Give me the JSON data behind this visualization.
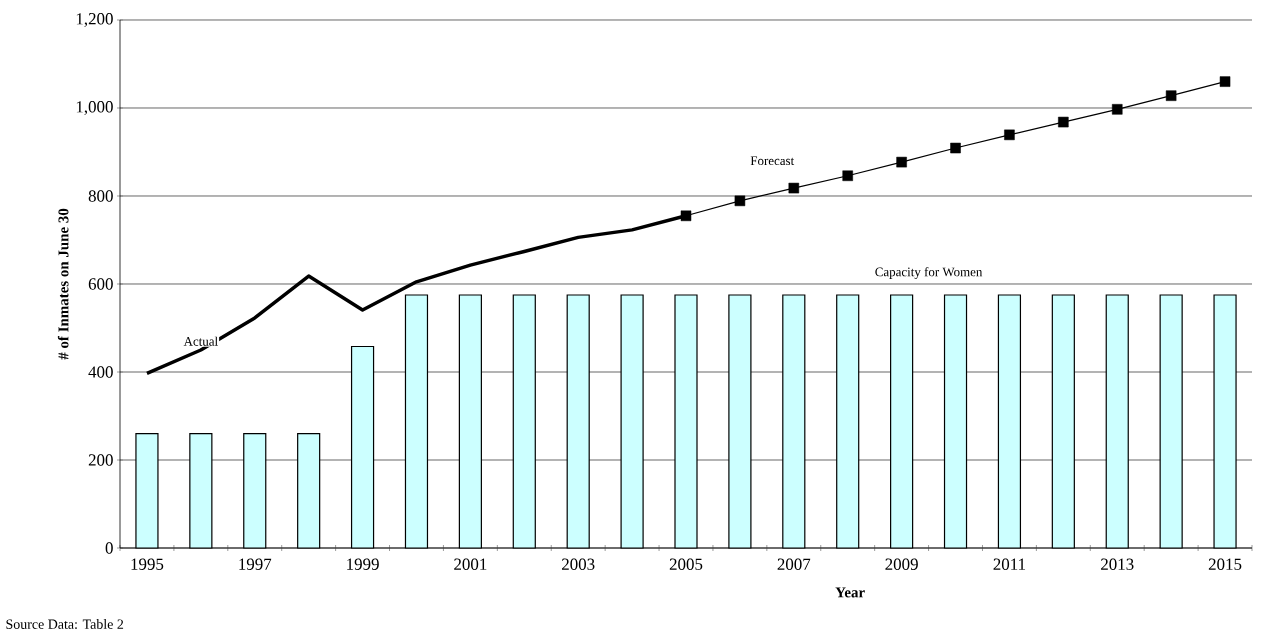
{
  "chart_data": {
    "type": "bar",
    "xlabel": "Year",
    "ylabel": "# of Inmates on June 30",
    "annotations": [
      "Source Data: Table 2"
    ],
    "categories": [
      "1995",
      null,
      "1997",
      null,
      "1999",
      null,
      "2001",
      null,
      "2003",
      null,
      "2005",
      null,
      "2007",
      null,
      "2009",
      null,
      "2011",
      null,
      "2013",
      null,
      "2015"
    ],
    "series": [
      {
        "name": "Capacity for Women",
        "color": "#ccffff",
        "values": [
          260,
          260,
          260,
          260,
          458,
          575,
          575,
          575,
          575,
          575,
          575,
          575,
          575,
          575,
          575,
          575,
          575,
          575,
          575,
          575,
          575
        ]
      },
      {
        "name": "Actual",
        "type": "line",
        "color": "#000000",
        "marker": "none",
        "values": [
          397,
          450,
          523,
          618,
          541,
          605,
          643,
          674,
          706,
          723,
          755,
          null,
          null,
          null,
          null,
          null,
          null,
          null,
          null,
          null,
          null
        ]
      },
      {
        "name": "Forecast",
        "type": "line",
        "color": "#000000",
        "marker": "square",
        "values": [
          null,
          null,
          null,
          null,
          null,
          null,
          null,
          null,
          null,
          null,
          755,
          789,
          818,
          846,
          877,
          909,
          939,
          968,
          997,
          1028,
          1060
        ]
      }
    ],
    "ylim": [
      0,
      1200
    ],
    "yticks": [
      0,
      200,
      400,
      600,
      800,
      {
        "value": 1000,
        "label": "1,000"
      },
      {
        "value": 1200,
        "label": "1,200"
      }
    ],
    "grid": "y"
  }
}
